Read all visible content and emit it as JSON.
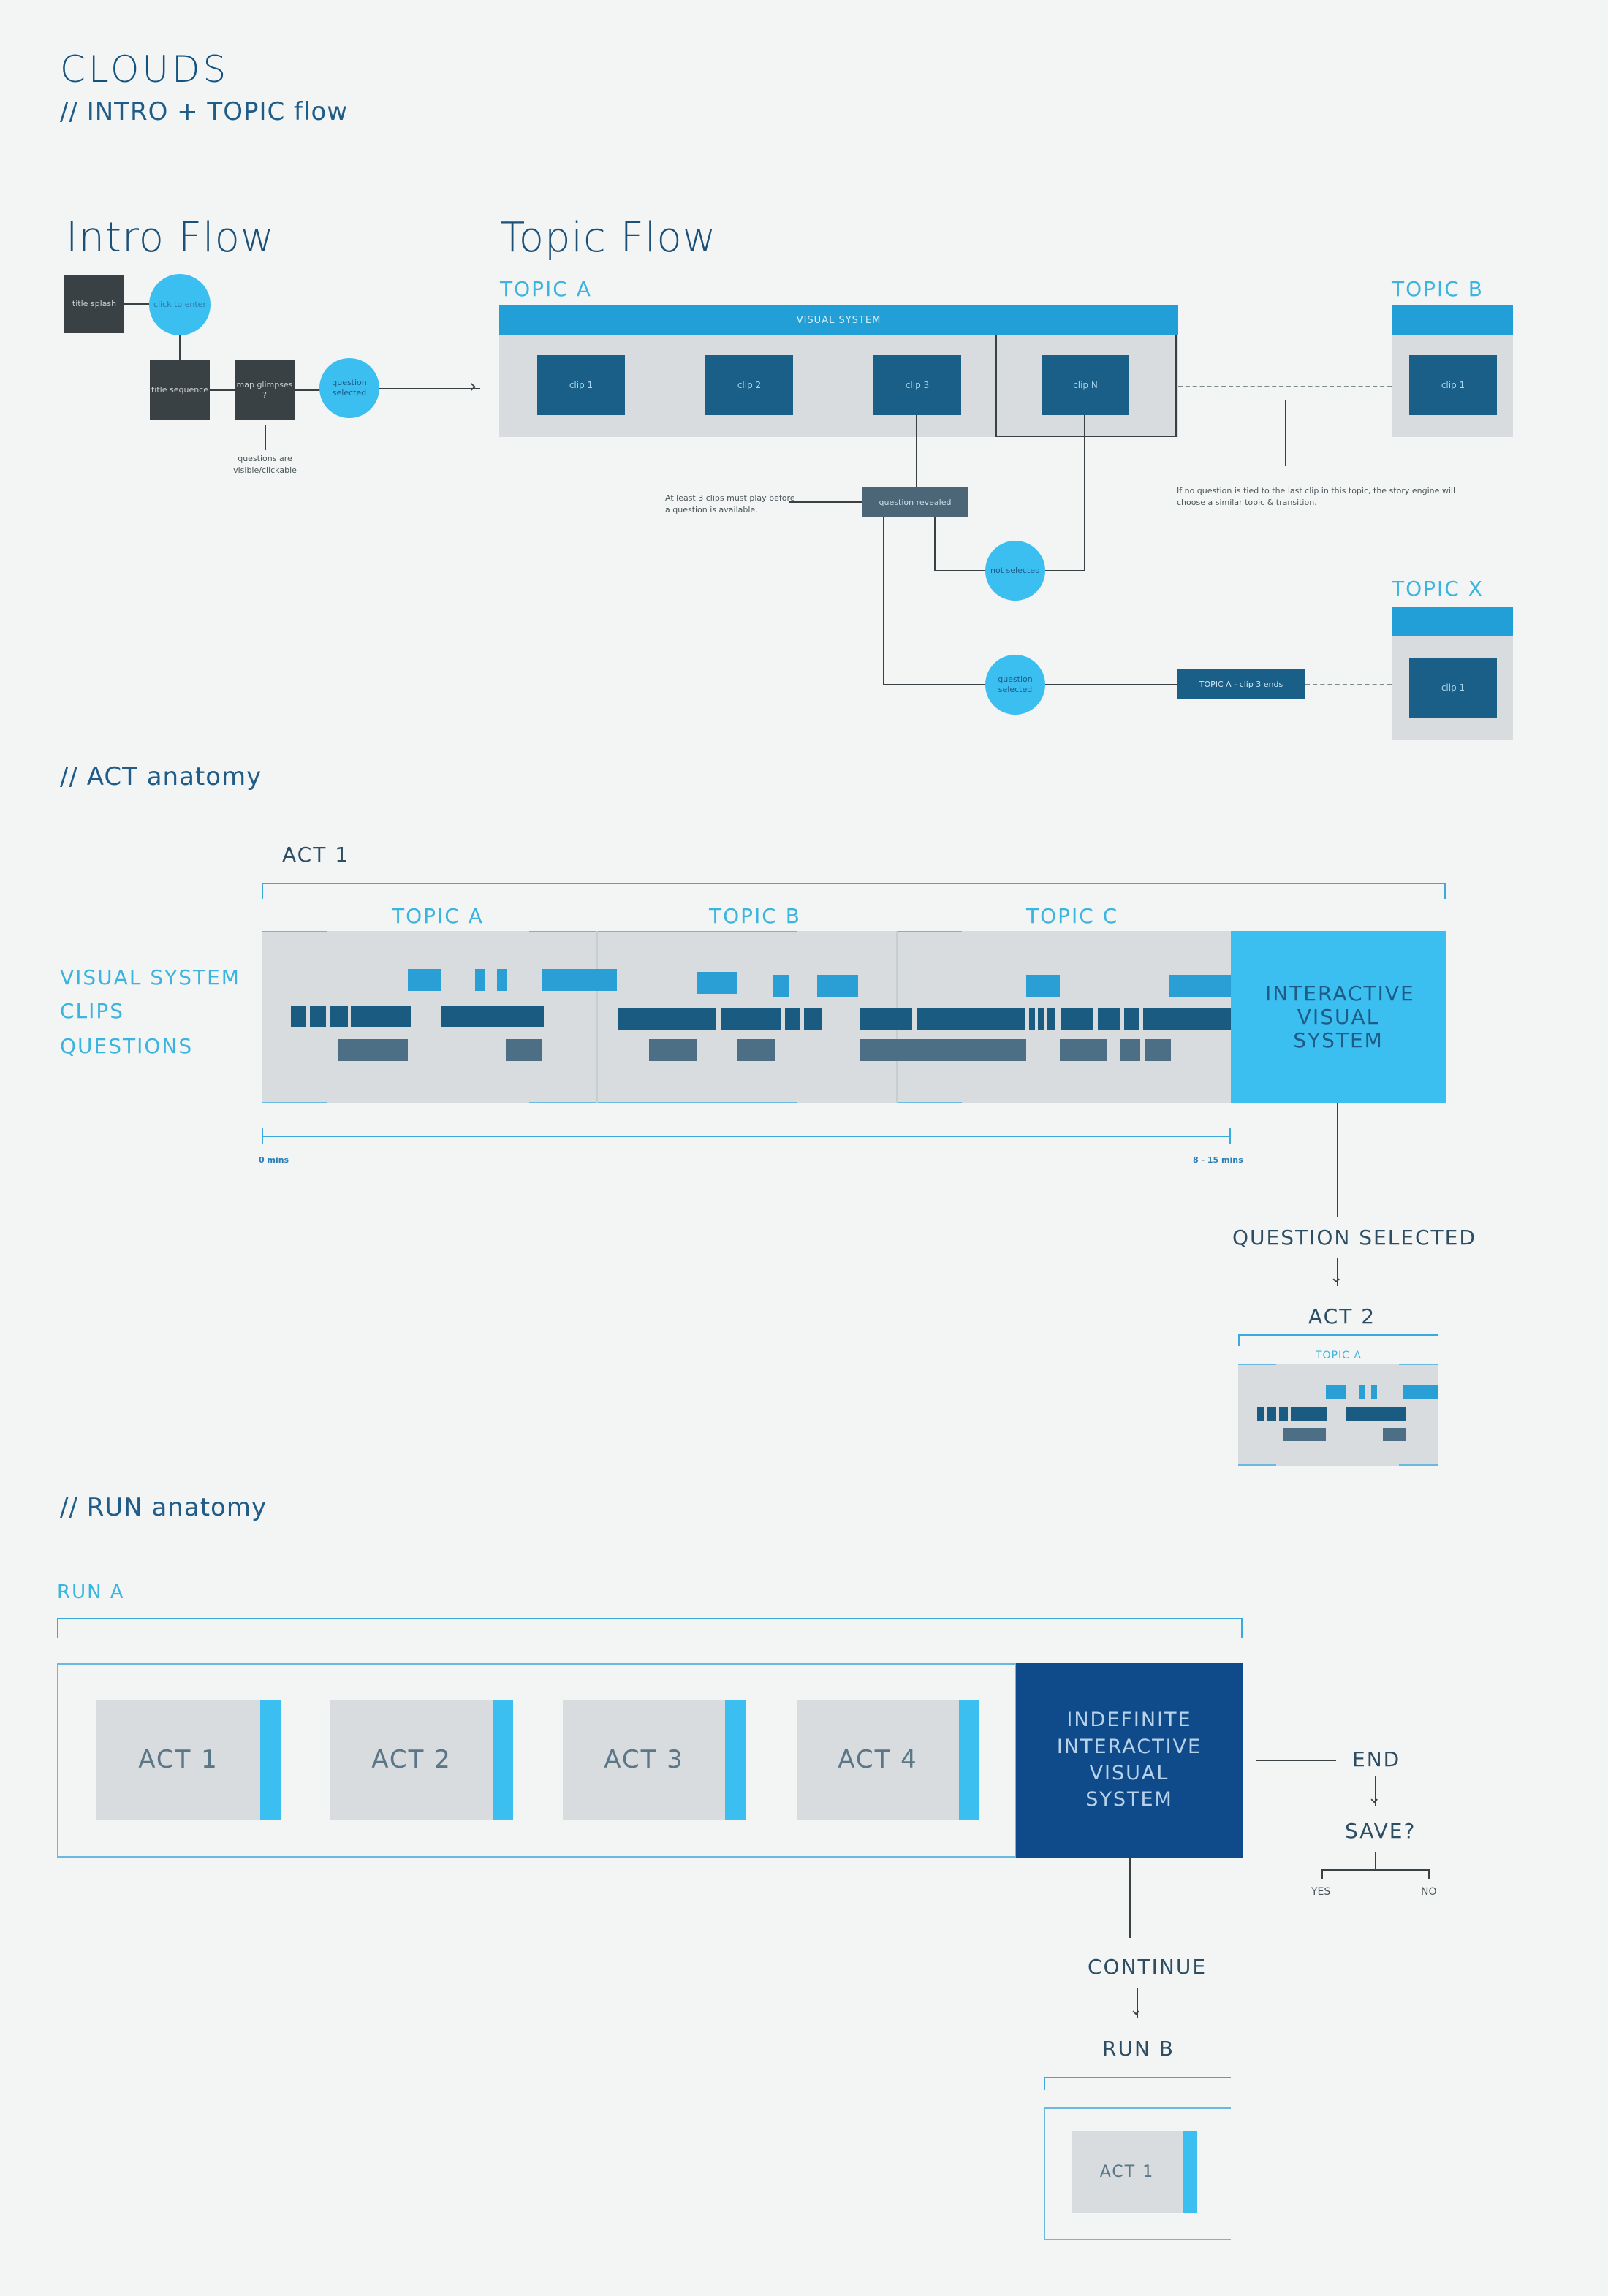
{
  "header": {
    "title": "CLOUDS",
    "subtitle": "// INTRO + TOPIC flow"
  },
  "intro_flow": {
    "heading": "Intro Flow",
    "title_splash": "title splash",
    "click_to_enter": "click to enter",
    "title_sequence": "title sequence",
    "map_glimpses": "map glimpses ?",
    "question_selected": "question selected",
    "questions_note": "questions are visible/clickable"
  },
  "topic_flow": {
    "heading": "Topic Flow",
    "topic_a": "TOPIC A",
    "visual_system": "VISUAL SYSTEM",
    "clips": [
      "clip 1",
      "clip 2",
      "clip 3",
      "clip N"
    ],
    "topic_b": "TOPIC B",
    "topic_b_clip": "clip 1",
    "topic_x": "TOPIC X",
    "topic_x_clip": "clip 1",
    "question_revealed": "question revealed",
    "clips_note": "At least 3 clips must play before a question is available.",
    "not_selected": "not selected",
    "question_selected": "question selected",
    "topic_a_ends": "TOPIC A - clip 3 ends",
    "no_question_note": "If no question is tied to the last clip in this topic, the story engine will choose a similar topic & transition."
  },
  "act_anatomy": {
    "heading": "// ACT anatomy",
    "act_label": "ACT 1",
    "topics": [
      "TOPIC A",
      "TOPIC B",
      "TOPIC C"
    ],
    "row_labels": [
      "VISUAL SYSTEM",
      "CLIPS",
      "QUESTIONS"
    ],
    "interactive": "INTERACTIVE VISUAL SYSTEM",
    "time_start": "0 mins",
    "time_end": "8 - 15 mins",
    "question_selected": "QUESTION SELECTED",
    "act2": "ACT 2",
    "act2_topic": "TOPIC A"
  },
  "run_anatomy": {
    "heading": "// RUN anatomy",
    "run_label": "RUN A",
    "acts": [
      "ACT 1",
      "ACT 2",
      "ACT 3",
      "ACT 4"
    ],
    "indefinite": "INDEFINITE INTERACTIVE VISUAL SYSTEM",
    "end": "END",
    "save": "SAVE?",
    "yes": "YES",
    "no": "NO",
    "continue": "CONTINUE",
    "run_b": "RUN B",
    "run_b_act": "ACT 1"
  },
  "colors": {
    "cyan": "#3bbef0",
    "blue": "#2a9fd6",
    "dark_blue": "#195f87",
    "navy": "#0f4a8a",
    "gray": "#d8dcdf"
  }
}
